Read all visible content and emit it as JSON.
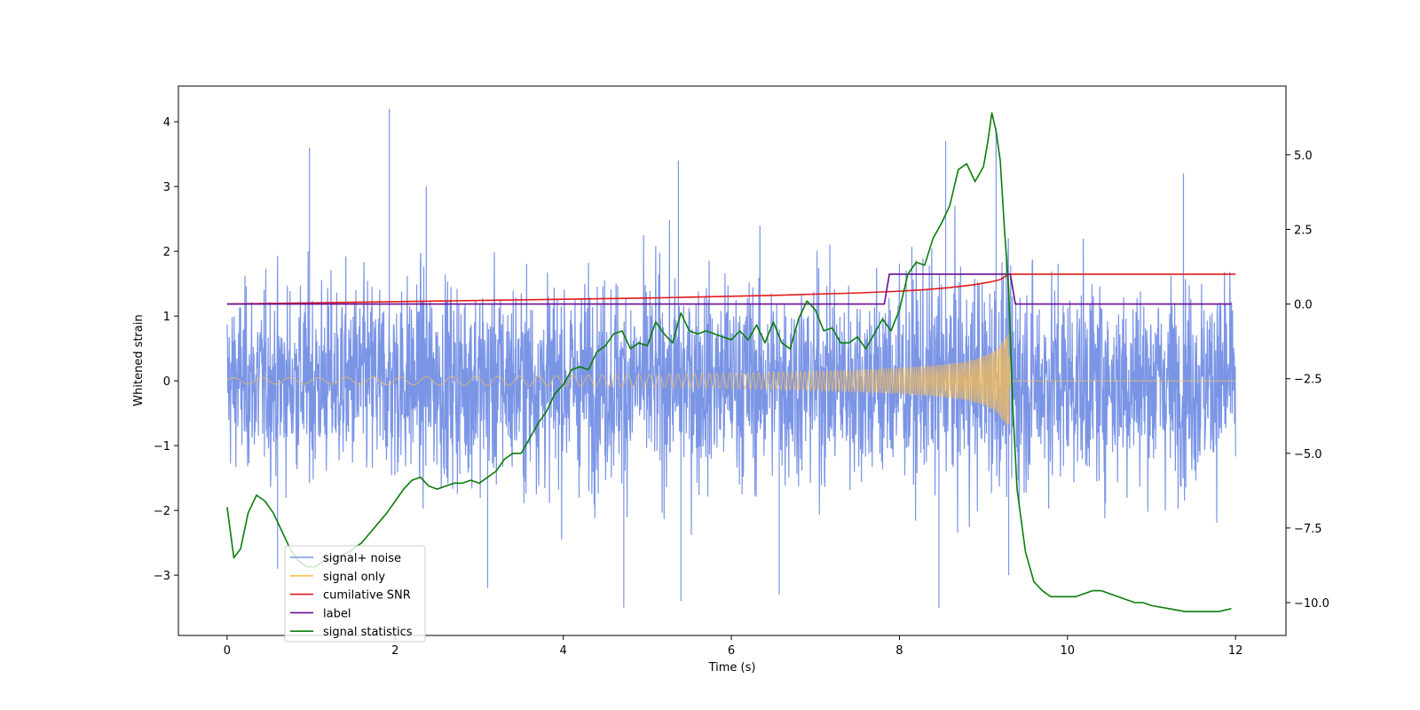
{
  "chart_data": {
    "type": "line",
    "title": "",
    "xlabel": "Time (s)",
    "ylabel": "Whitened strain",
    "y2label": "",
    "xlim": [
      -0.58,
      12.6
    ],
    "ylim": [
      -3.93,
      4.55
    ],
    "y2lim": [
      -11.1,
      7.3
    ],
    "x_ticks": [
      0,
      2,
      4,
      6,
      8,
      10,
      12
    ],
    "x_tick_labels": [
      "0",
      "2",
      "4",
      "6",
      "8",
      "10",
      "12"
    ],
    "y_ticks": [
      -3,
      -2,
      -1,
      0,
      1,
      2,
      3,
      4
    ],
    "y_tick_labels": [
      "−3",
      "−2",
      "−1",
      "0",
      "1",
      "2",
      "3",
      "4"
    ],
    "y2_ticks": [
      -10,
      -7.5,
      -5,
      -2.5,
      0,
      2.5,
      5
    ],
    "y2_tick_labels": [
      "−10.0",
      "−7.5",
      "−5.0",
      "−2.5",
      "0.0",
      "2.5",
      "5.0"
    ],
    "grid": false,
    "legend_position": "lower-left",
    "series": [
      {
        "name": "signal+ noise",
        "axis": "left",
        "color": "#7b95e6",
        "style": "dense noise trace",
        "x_range": [
          0,
          12
        ],
        "y_range": [
          -3.6,
          4.2
        ],
        "envelope": [
          [
            0.0,
            -2.2,
            2.2
          ],
          [
            1.0,
            -2.4,
            2.5
          ],
          [
            2.0,
            -2.6,
            2.6
          ],
          [
            3.0,
            -2.6,
            2.6
          ],
          [
            4.0,
            -2.6,
            2.6
          ],
          [
            5.0,
            -2.6,
            2.7
          ],
          [
            6.0,
            -2.6,
            2.7
          ],
          [
            7.0,
            -2.6,
            2.7
          ],
          [
            8.0,
            -2.6,
            2.8
          ],
          [
            9.0,
            -2.8,
            3.0
          ],
          [
            9.3,
            -2.8,
            3.0
          ],
          [
            10.0,
            -2.6,
            2.6
          ],
          [
            11.0,
            -2.6,
            2.6
          ],
          [
            12.0,
            -2.6,
            2.6
          ]
        ],
        "spikes": [
          [
            0.98,
            3.6
          ],
          [
            1.93,
            4.2
          ],
          [
            2.37,
            3.0
          ],
          [
            5.37,
            3.4
          ],
          [
            8.55,
            3.7
          ],
          [
            9.15,
            3.9
          ],
          [
            11.38,
            3.2
          ],
          [
            0.6,
            -2.9
          ],
          [
            3.1,
            -3.2
          ],
          [
            4.72,
            -3.5
          ],
          [
            5.4,
            -3.4
          ],
          [
            8.47,
            -3.5
          ],
          [
            9.3,
            -3.0
          ],
          [
            6.57,
            -3.3
          ]
        ]
      },
      {
        "name": "signal only",
        "axis": "left",
        "color": "#ffc04d",
        "style": "chirp",
        "envelope": [
          [
            0.0,
            0.05
          ],
          [
            1.0,
            0.05
          ],
          [
            2.0,
            0.06
          ],
          [
            3.0,
            0.07
          ],
          [
            4.0,
            0.08
          ],
          [
            5.0,
            0.1
          ],
          [
            6.0,
            0.12
          ],
          [
            7.0,
            0.15
          ],
          [
            7.5,
            0.17
          ],
          [
            8.0,
            0.2
          ],
          [
            8.5,
            0.25
          ],
          [
            8.8,
            0.3
          ],
          [
            9.0,
            0.38
          ],
          [
            9.15,
            0.48
          ],
          [
            9.25,
            0.65
          ],
          [
            9.3,
            0.8
          ],
          [
            9.32,
            0.0
          ],
          [
            12.0,
            0.0
          ]
        ]
      },
      {
        "name": "cumilative SNR",
        "axis": "right",
        "color": "#e41a1c",
        "x": [
          0,
          1,
          2,
          3,
          4,
          5,
          6,
          6.5,
          7,
          7.5,
          8,
          8.3,
          8.6,
          8.9,
          9.1,
          9.2,
          9.3,
          10,
          11,
          12
        ],
        "y": [
          0.0,
          0.04,
          0.08,
          0.12,
          0.16,
          0.2,
          0.26,
          0.29,
          0.33,
          0.37,
          0.43,
          0.48,
          0.55,
          0.65,
          0.75,
          0.82,
          1.0,
          1.0,
          1.0,
          1.0
        ]
      },
      {
        "name": "label",
        "axis": "right",
        "color": "#6a0d91",
        "x": [
          0,
          7.82,
          7.88,
          9.32,
          9.38,
          11.95
        ],
        "y": [
          0,
          0,
          1,
          1,
          0,
          0
        ]
      },
      {
        "name": "signal statistics",
        "axis": "right",
        "color": "#0a7d0a",
        "x": [
          0.0,
          0.08,
          0.16,
          0.25,
          0.35,
          0.45,
          0.55,
          0.65,
          0.75,
          0.85,
          0.95,
          1.05,
          1.15,
          1.3,
          1.45,
          1.6,
          1.75,
          1.9,
          2.0,
          2.1,
          2.2,
          2.3,
          2.4,
          2.5,
          2.6,
          2.7,
          2.8,
          2.9,
          3.0,
          3.1,
          3.2,
          3.3,
          3.4,
          3.5,
          3.6,
          3.7,
          3.8,
          3.9,
          4.0,
          4.1,
          4.2,
          4.3,
          4.4,
          4.5,
          4.6,
          4.7,
          4.8,
          4.9,
          5.0,
          5.1,
          5.2,
          5.3,
          5.4,
          5.5,
          5.6,
          5.7,
          5.8,
          5.9,
          6.0,
          6.1,
          6.2,
          6.3,
          6.4,
          6.5,
          6.6,
          6.7,
          6.8,
          6.9,
          7.0,
          7.1,
          7.2,
          7.3,
          7.4,
          7.5,
          7.6,
          7.7,
          7.8,
          7.9,
          8.0,
          8.1,
          8.2,
          8.3,
          8.4,
          8.5,
          8.6,
          8.7,
          8.8,
          8.9,
          9.0,
          9.05,
          9.1,
          9.15,
          9.2,
          9.25,
          9.3,
          9.35,
          9.4,
          9.5,
          9.6,
          9.7,
          9.8,
          9.9,
          10.0,
          10.1,
          10.2,
          10.3,
          10.4,
          10.5,
          10.6,
          10.7,
          10.8,
          10.9,
          11.0,
          11.2,
          11.4,
          11.6,
          11.8,
          11.95
        ],
        "y": [
          -6.8,
          -8.5,
          -8.2,
          -7.0,
          -6.4,
          -6.6,
          -7.0,
          -7.6,
          -8.2,
          -8.6,
          -8.8,
          -8.8,
          -8.6,
          -8.5,
          -8.3,
          -8.0,
          -7.5,
          -7.0,
          -6.6,
          -6.2,
          -5.9,
          -5.8,
          -6.1,
          -6.2,
          -6.1,
          -6.0,
          -6.0,
          -5.9,
          -6.0,
          -5.8,
          -5.6,
          -5.2,
          -5.0,
          -5.0,
          -4.5,
          -4.0,
          -3.6,
          -3.0,
          -2.7,
          -2.2,
          -2.1,
          -2.2,
          -1.6,
          -1.4,
          -1.0,
          -0.9,
          -1.5,
          -1.3,
          -1.4,
          -0.6,
          -1.0,
          -1.3,
          -0.3,
          -0.9,
          -1.0,
          -0.9,
          -1.0,
          -1.1,
          -1.2,
          -0.9,
          -1.2,
          -0.7,
          -1.3,
          -0.6,
          -1.3,
          -1.5,
          -0.5,
          0.1,
          -0.2,
          -0.9,
          -0.8,
          -1.3,
          -1.3,
          -1.1,
          -1.5,
          -1.0,
          -0.5,
          -0.9,
          -0.2,
          1.0,
          1.4,
          1.3,
          2.2,
          2.7,
          3.3,
          4.5,
          4.7,
          4.1,
          4.6,
          5.4,
          6.4,
          5.8,
          4.8,
          2.5,
          0.5,
          -3.5,
          -6.2,
          -8.3,
          -9.3,
          -9.6,
          -9.8,
          -9.8,
          -9.8,
          -9.8,
          -9.7,
          -9.6,
          -9.6,
          -9.7,
          -9.8,
          -9.9,
          -10.0,
          -10.0,
          -10.1,
          -10.2,
          -10.3,
          -10.3,
          -10.3,
          -10.2
        ]
      }
    ]
  }
}
